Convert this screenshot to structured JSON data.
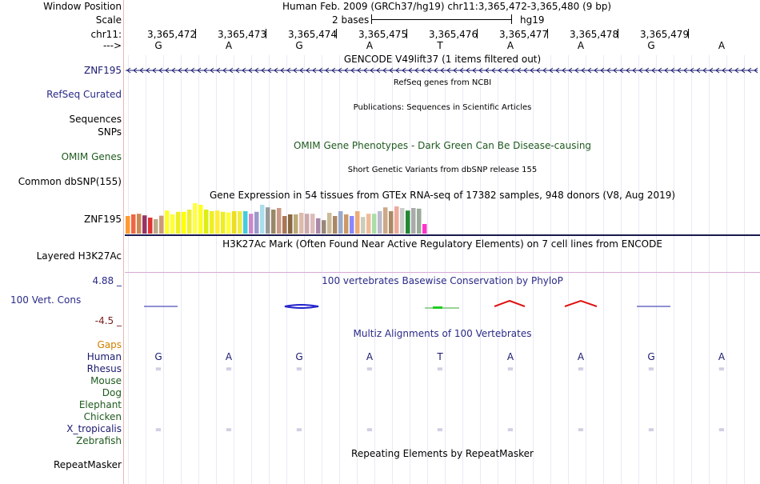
{
  "header": {
    "window_position_label": "Window Position",
    "window_position_value": "Human Feb. 2009 (GRCh37/hg19)   chr11:3,365,472-3,365,480 (9 bp)",
    "scale_label": "Scale",
    "scale_value": "2 bases",
    "scale_assembly": "hg19",
    "chrom_label": "chr11:",
    "strand_label": "--->",
    "positions": [
      "3,365,472",
      "3,365,473",
      "3,365,474",
      "3,365,475",
      "3,365,476",
      "3,365,477",
      "3,365,478",
      "3,365,479"
    ],
    "bases": [
      "G",
      "A",
      "G",
      "A",
      "T",
      "A",
      "A",
      "G",
      "A"
    ]
  },
  "tracks": {
    "gencode_title": "GENCODE V49lift37 (1 items filtered out)",
    "gencode_gene": "ZNF195",
    "refseq_title": "RefSeq genes from NCBI",
    "refseq_label": "RefSeq Curated",
    "pubs_title": "Publications: Sequences in Scientific Articles",
    "pubs_label_1": "Sequences",
    "pubs_label_2": "SNPs",
    "omim_title": "OMIM Gene Phenotypes - Dark Green Can Be Disease-causing",
    "omim_label": "OMIM Genes",
    "dbsnp_title": "Short Genetic Variants from dbSNP release 155",
    "dbsnp_label": "Common dbSNP(155)",
    "gtex_title": "Gene Expression in 54 tissues from GTEx RNA-seq of 17382 samples, 948 donors (V8, Aug 2019)",
    "gtex_label": "ZNF195",
    "h3k27ac_title": "H3K27Ac Mark (Often Found Near Active Regulatory Elements) on 7 cell lines from ENCODE",
    "h3k27ac_label": "Layered H3K27Ac",
    "cons_title": "100 vertebrates Basewise Conservation by PhyloP",
    "cons_label": "100 Vert. Cons",
    "cons_max": "4.88 _",
    "cons_min": "-4.5 _",
    "multiz_title": "Multiz Alignments of 100 Vertebrates",
    "repeat_title": "Repeating Elements by RepeatMasker",
    "repeat_label": "RepeatMasker"
  },
  "multiz": {
    "gaps": "Gaps",
    "human": "Human",
    "rhesus": "Rhesus",
    "mouse": "Mouse",
    "dog": "Dog",
    "elephant": "Elephant",
    "chicken": "Chicken",
    "xtrop": "X_tropicalis",
    "zebrafish": "Zebrafish",
    "human_bases": [
      "G",
      "A",
      "G",
      "A",
      "T",
      "A",
      "A",
      "G",
      "A"
    ],
    "rhesus_marks": [
      "=",
      "=",
      "=",
      "=",
      "=",
      "=",
      "=",
      "=",
      "="
    ],
    "xtrop_marks": [
      "=",
      "=",
      "=",
      "=",
      "=",
      "=",
      "=",
      "=",
      "="
    ]
  },
  "gtex": {
    "values": [
      0.55,
      0.6,
      0.62,
      0.57,
      0.5,
      0.45,
      0.56,
      0.72,
      0.6,
      0.68,
      0.68,
      0.75,
      0.95,
      0.9,
      0.75,
      0.7,
      0.72,
      0.68,
      0.66,
      0.7,
      0.7,
      0.7,
      0.62,
      0.68,
      0.9,
      0.82,
      0.75,
      0.8,
      0.55,
      0.6,
      0.6,
      0.65,
      0.62,
      0.62,
      0.48,
      0.42,
      0.65,
      0.55,
      0.7,
      0.6,
      0.55,
      0.7,
      0.52,
      0.62,
      0.62,
      0.7,
      0.82,
      0.7,
      0.85,
      0.8,
      0.72,
      0.8,
      0.78,
      0.3
    ],
    "colors": [
      "#ff9933",
      "#ee6644",
      "#cc8855",
      "#993366",
      "#dd3333",
      "#bbaa88",
      "#cc9977",
      "#ffff22",
      "#ffff33",
      "#eeee22",
      "#ffff00",
      "#eeee33",
      "#ffff44",
      "#ffff22",
      "#ddee11",
      "#eeee22",
      "#ffee33",
      "#eeee22",
      "#ffff33",
      "#eedd22",
      "#eeee44",
      "#44ccdd",
      "#cc88cc",
      "#9999cc",
      "#aaddee",
      "#999999",
      "#998866",
      "#cc9988",
      "#aa7755",
      "#886644",
      "#bbaa77",
      "#ddbbaa",
      "#ccaaaa",
      "#ddbbbb",
      "#aa88aa",
      "#998877",
      "#ccbb99",
      "#aa8866",
      "#99aacc",
      "#cc9966",
      "#8888ff",
      "#eeaa77",
      "#ccccbb",
      "#eebb99",
      "#aaddaa",
      "#bbbbcc",
      "#ccaa88",
      "#aa8866",
      "#eeaa99",
      "#cccccc",
      "#228833",
      "#aaaaaa",
      "#99aa99",
      "#ff33cc"
    ]
  }
}
